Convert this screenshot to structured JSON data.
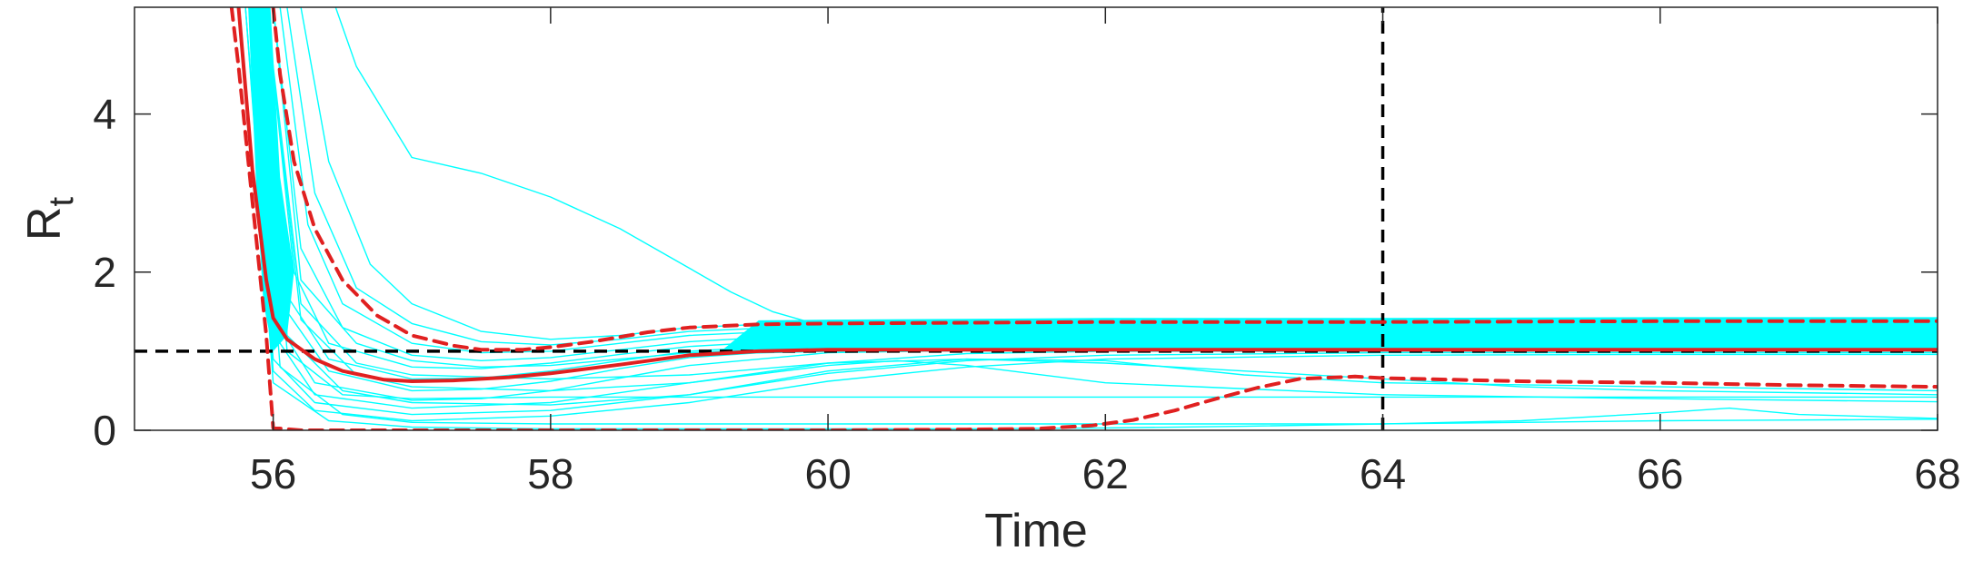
{
  "chart_data": {
    "type": "line",
    "xlabel": "Time",
    "ylabel": "R",
    "ylabel_subscript": "t",
    "xlim": [
      55,
      68
    ],
    "ylim": [
      0,
      5.35
    ],
    "xticks": [
      56,
      58,
      60,
      62,
      64,
      66,
      68
    ],
    "xtick_labels": [
      "56",
      "58",
      "60",
      "62",
      "64",
      "66",
      "68"
    ],
    "yticks": [
      0,
      2,
      4
    ],
    "ytick_labels": [
      "0",
      "2",
      "4"
    ],
    "grid": false,
    "legend": "none",
    "colors": {
      "ensemble": "#00ffff",
      "median": "#e02020",
      "reference": "#000000"
    },
    "reference_lines": {
      "horizontal_y": 1,
      "vertical_x": 64
    },
    "series": [
      {
        "role": "median",
        "style": "solid",
        "x": [
          55.75,
          55.85,
          55.95,
          56.0,
          56.1,
          56.3,
          56.5,
          56.8,
          57.0,
          57.3,
          57.7,
          58.0,
          58.5,
          59.0,
          59.5,
          60.0,
          61.0,
          62.0,
          64.0,
          66.0,
          68.0
        ],
        "y": [
          5.35,
          3.3,
          1.9,
          1.42,
          1.15,
          0.9,
          0.75,
          0.64,
          0.62,
          0.63,
          0.67,
          0.72,
          0.83,
          0.95,
          1.0,
          1.02,
          1.02,
          1.02,
          1.02,
          1.02,
          1.02
        ]
      },
      {
        "role": "upper-bound",
        "style": "dashed",
        "x": [
          56.0,
          56.05,
          56.15,
          56.3,
          56.5,
          56.75,
          57.0,
          57.3,
          57.5,
          57.8,
          58.0,
          58.3,
          58.7,
          59.0,
          59.5,
          60.0,
          61.0,
          62.0,
          64.0,
          66.0,
          68.0
        ],
        "y": [
          5.35,
          4.5,
          3.4,
          2.55,
          1.9,
          1.45,
          1.2,
          1.07,
          1.02,
          1.02,
          1.05,
          1.12,
          1.24,
          1.3,
          1.34,
          1.35,
          1.36,
          1.37,
          1.37,
          1.38,
          1.38
        ]
      },
      {
        "role": "lower-bound",
        "style": "dashed",
        "x": [
          55.7,
          55.75,
          55.85,
          55.95,
          56.0,
          56.2,
          57.0,
          58.0,
          59.0,
          60.0,
          61.0,
          61.5,
          61.9,
          62.2,
          62.5,
          62.8,
          63.1,
          63.4,
          63.8,
          64.0,
          65.0,
          66.0,
          67.0,
          68.0
        ],
        "y": [
          5.35,
          4.6,
          2.9,
          1.2,
          0.03,
          0.0,
          0.0,
          0.0,
          0.0,
          0.0,
          0.01,
          0.02,
          0.06,
          0.13,
          0.25,
          0.4,
          0.54,
          0.65,
          0.68,
          0.66,
          0.62,
          0.6,
          0.57,
          0.55
        ]
      }
    ],
    "ensemble_trajectories": [
      {
        "x": [
          56.45,
          56.6,
          57.0,
          57.5,
          58.0,
          58.5,
          59.0,
          59.3,
          59.6,
          60.0,
          61.0,
          62.0,
          64.0,
          66.0,
          68.0
        ],
        "y": [
          5.35,
          4.6,
          3.45,
          3.25,
          2.95,
          2.55,
          2.05,
          1.75,
          1.5,
          1.3,
          1.25,
          1.22,
          1.2,
          1.2,
          1.2
        ]
      },
      {
        "x": [
          56.2,
          56.4,
          56.7,
          57.0,
          57.5,
          58.0,
          58.5,
          59.0,
          60.0,
          62.0,
          64.0,
          66.0,
          68.0
        ],
        "y": [
          5.35,
          3.4,
          2.1,
          1.6,
          1.25,
          1.15,
          1.2,
          1.3,
          1.38,
          1.4,
          1.41,
          1.41,
          1.41
        ]
      },
      {
        "x": [
          56.1,
          56.3,
          56.6,
          57.0,
          57.5,
          58.0,
          58.5,
          59.0,
          60.0,
          62.0,
          64.0,
          66.0,
          68.0
        ],
        "y": [
          5.35,
          3.0,
          1.8,
          1.35,
          1.12,
          1.08,
          1.15,
          1.25,
          1.33,
          1.35,
          1.35,
          1.35,
          1.35
        ]
      },
      {
        "x": [
          56.05,
          56.25,
          56.5,
          57.0,
          57.5,
          58.0,
          58.5,
          59.0,
          60.0,
          62.0,
          64.0,
          66.0,
          68.0
        ],
        "y": [
          5.35,
          2.6,
          1.6,
          1.1,
          0.98,
          1.0,
          1.1,
          1.2,
          1.28,
          1.3,
          1.3,
          1.3,
          1.3
        ]
      },
      {
        "x": [
          56.0,
          56.2,
          56.5,
          57.0,
          57.5,
          58.0,
          58.5,
          59.0,
          60.0,
          62.0,
          64.0,
          66.0,
          68.0
        ],
        "y": [
          5.35,
          2.3,
          1.3,
          0.95,
          0.88,
          0.92,
          1.02,
          1.12,
          1.22,
          1.25,
          1.25,
          1.25,
          1.25
        ]
      },
      {
        "x": [
          55.95,
          56.15,
          56.4,
          57.0,
          57.5,
          58.0,
          58.5,
          59.0,
          60.0,
          62.0,
          64.0,
          66.0,
          68.0
        ],
        "y": [
          5.35,
          2.0,
          1.1,
          0.8,
          0.78,
          0.85,
          0.96,
          1.06,
          1.16,
          1.2,
          1.2,
          1.2,
          1.2
        ]
      },
      {
        "x": [
          55.9,
          56.1,
          56.4,
          57.0,
          57.5,
          58.0,
          58.5,
          59.0,
          60.0,
          62.0,
          64.0,
          66.0,
          68.0
        ],
        "y": [
          5.35,
          1.7,
          0.9,
          0.65,
          0.66,
          0.75,
          0.88,
          1.0,
          1.1,
          1.14,
          1.15,
          1.15,
          1.15
        ]
      },
      {
        "x": [
          55.9,
          56.1,
          56.4,
          57.0,
          57.5,
          58.0,
          58.5,
          59.0,
          60.0,
          62.0,
          64.0,
          66.0,
          68.0
        ],
        "y": [
          5.35,
          1.5,
          0.75,
          0.5,
          0.52,
          0.62,
          0.78,
          0.92,
          1.04,
          1.08,
          1.1,
          1.1,
          1.1
        ]
      },
      {
        "x": [
          55.85,
          56.05,
          56.3,
          57.0,
          57.5,
          58.0,
          58.5,
          59.0,
          60.0,
          62.0,
          64.0,
          66.0,
          68.0
        ],
        "y": [
          5.35,
          1.3,
          0.6,
          0.38,
          0.4,
          0.5,
          0.66,
          0.82,
          0.98,
          1.04,
          1.05,
          1.05,
          1.05
        ]
      },
      {
        "x": [
          55.85,
          56.05,
          56.3,
          57.0,
          58.0,
          59.0,
          60.0,
          61.0,
          62.0,
          64.0,
          66.0,
          68.0
        ],
        "y": [
          5.35,
          1.1,
          0.45,
          0.28,
          0.35,
          0.6,
          0.85,
          0.97,
          1.0,
          1.0,
          1.0,
          1.0
        ]
      },
      {
        "x": [
          55.8,
          56.0,
          56.3,
          57.0,
          58.0,
          59.0,
          60.0,
          61.0,
          62.0,
          64.0,
          66.0,
          68.0
        ],
        "y": [
          5.35,
          0.9,
          0.35,
          0.2,
          0.25,
          0.45,
          0.72,
          0.88,
          0.95,
          0.98,
          0.98,
          0.98
        ]
      },
      {
        "x": [
          55.8,
          56.0,
          56.3,
          57.0,
          58.0,
          59.0,
          60.0,
          61.0,
          62.0,
          64.0,
          66.0,
          68.0
        ],
        "y": [
          5.35,
          0.75,
          0.25,
          0.12,
          0.18,
          0.35,
          0.62,
          0.8,
          0.9,
          0.95,
          0.96,
          0.96
        ]
      },
      {
        "x": [
          55.9,
          56.1,
          56.5,
          57.0,
          58.0,
          59.0,
          60.0,
          61.0,
          62.0,
          63.0,
          64.0,
          66.0,
          68.0
        ],
        "y": [
          5.35,
          1.2,
          0.5,
          0.35,
          0.32,
          0.45,
          0.75,
          0.9,
          0.88,
          0.7,
          0.6,
          0.55,
          0.5
        ]
      },
      {
        "x": [
          55.95,
          56.2,
          56.6,
          57.0,
          58.0,
          59.0,
          60.0,
          60.5,
          61.0,
          62.0,
          64.0,
          66.0,
          68.0
        ],
        "y": [
          5.35,
          1.4,
          0.7,
          0.55,
          0.5,
          0.6,
          0.82,
          0.88,
          0.82,
          0.6,
          0.45,
          0.4,
          0.36
        ]
      },
      {
        "x": [
          55.9,
          56.1,
          56.5,
          57.0,
          58.0,
          59.0,
          60.0,
          61.0,
          62.0,
          64.0,
          66.0,
          68.0
        ],
        "y": [
          5.35,
          1.0,
          0.45,
          0.4,
          0.42,
          0.42,
          0.42,
          0.42,
          0.42,
          0.42,
          0.42,
          0.42
        ]
      },
      {
        "x": [
          55.85,
          56.05,
          56.5,
          57.0,
          58.0,
          59.0,
          60.0,
          61.0,
          62.0,
          64.0,
          65.0,
          66.0,
          66.5,
          67.0,
          68.0
        ],
        "y": [
          5.35,
          0.8,
          0.2,
          0.1,
          0.08,
          0.08,
          0.08,
          0.08,
          0.08,
          0.08,
          0.12,
          0.22,
          0.28,
          0.2,
          0.15
        ]
      },
      {
        "x": [
          55.8,
          56.0,
          56.4,
          57.0,
          58.0,
          59.0,
          60.0,
          61.0,
          62.0,
          63.0,
          64.0,
          65.0,
          66.0,
          67.0,
          68.0
        ],
        "y": [
          5.35,
          0.6,
          0.12,
          0.04,
          0.02,
          0.02,
          0.02,
          0.02,
          0.03,
          0.05,
          0.08,
          0.1,
          0.12,
          0.13,
          0.14
        ]
      },
      {
        "x": [
          55.95,
          56.2,
          56.6,
          57.0,
          58.0,
          59.0,
          60.0,
          61.0,
          62.0,
          63.0,
          64.0,
          65.0,
          66.0,
          68.0
        ],
        "y": [
          5.35,
          1.6,
          0.85,
          0.7,
          0.65,
          0.7,
          0.85,
          0.9,
          0.85,
          0.75,
          0.65,
          0.55,
          0.5,
          0.45
        ]
      },
      {
        "x": [
          56.0,
          56.2,
          56.6,
          57.0,
          57.5,
          58.0,
          58.5,
          59.0,
          59.5,
          60.0,
          62.0,
          64.0,
          66.0,
          68.0
        ],
        "y": [
          5.35,
          1.9,
          1.1,
          0.88,
          0.8,
          0.82,
          0.9,
          0.98,
          1.02,
          1.03,
          1.03,
          1.03,
          1.03,
          1.03
        ]
      }
    ]
  }
}
